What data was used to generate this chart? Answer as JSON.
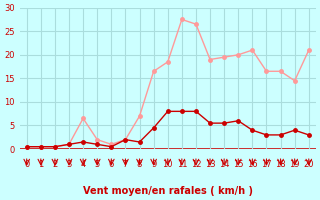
{
  "x": [
    0,
    1,
    2,
    3,
    4,
    5,
    6,
    7,
    8,
    9,
    10,
    11,
    12,
    13,
    14,
    15,
    16,
    17,
    18,
    19,
    20
  ],
  "wind_avg": [
    0.5,
    0.5,
    0.5,
    1.0,
    1.5,
    1.0,
    0.5,
    2.0,
    1.5,
    4.5,
    8.0,
    8.0,
    8.0,
    5.5,
    5.5,
    6.0,
    4.0,
    3.0,
    3.0,
    4.0,
    3.0
  ],
  "wind_gust": [
    0.5,
    0.5,
    0.5,
    1.0,
    6.5,
    2.0,
    1.0,
    2.0,
    7.0,
    16.5,
    18.5,
    27.5,
    26.5,
    19.0,
    19.5,
    20.0,
    21.0,
    16.5,
    16.5,
    14.5,
    21.0
  ],
  "color_avg": "#cc0000",
  "color_gust": "#ff9999",
  "bg_color": "#ccffff",
  "grid_color": "#aadddd",
  "xlabel": "Vent moyen/en rafales ( km/h )",
  "xlabel_color": "#cc0000",
  "tick_color": "#cc0000",
  "arrow_color": "#cc0000",
  "ylim": [
    0,
    30
  ],
  "yticks": [
    0,
    5,
    10,
    15,
    20,
    25,
    30
  ],
  "xlim": [
    -0.5,
    20.5
  ]
}
